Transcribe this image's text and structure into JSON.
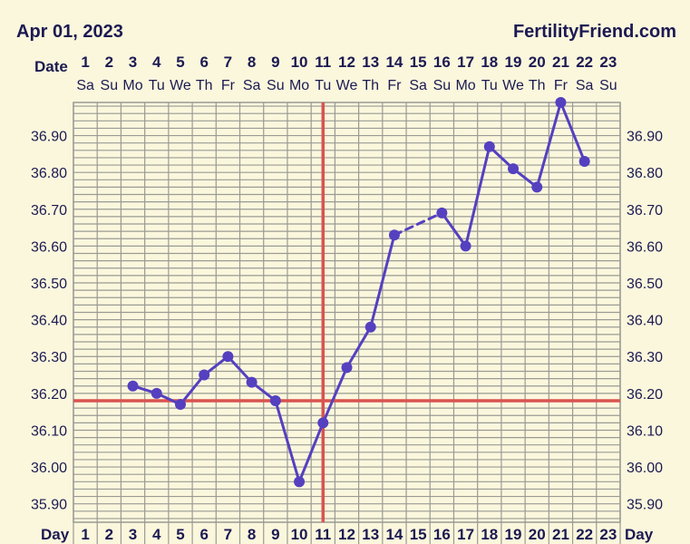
{
  "header": {
    "date": "Apr 01, 2023",
    "brand": "FertilityFriend.com"
  },
  "row_labels": {
    "date": "Date",
    "day": "Day"
  },
  "colors": {
    "background": "#fbf7dd",
    "grid": "#9a9a94",
    "text": "#1c1a52",
    "series": "#5540c0",
    "coverline": "#d9534f",
    "ovulation": "#d9534f"
  },
  "chart_data": {
    "type": "line",
    "dates": [
      "1",
      "2",
      "3",
      "4",
      "5",
      "6",
      "7",
      "8",
      "9",
      "10",
      "11",
      "12",
      "13",
      "14",
      "15",
      "16",
      "17",
      "18",
      "19",
      "20",
      "21",
      "22",
      "23"
    ],
    "weekdays": [
      "Sa",
      "Su",
      "Mo",
      "Tu",
      "We",
      "Th",
      "Fr",
      "Sa",
      "Su",
      "Mo",
      "Tu",
      "We",
      "Th",
      "Fr",
      "Sa",
      "Su",
      "Mo",
      "Tu",
      "We",
      "Th",
      "Fr",
      "Sa",
      "Su"
    ],
    "days": [
      "1",
      "2",
      "3",
      "4",
      "5",
      "6",
      "7",
      "8",
      "9",
      "10",
      "11",
      "12",
      "13",
      "14",
      "15",
      "16",
      "17",
      "18",
      "19",
      "20",
      "21",
      "22",
      "23"
    ],
    "y_ticks": [
      "35.90",
      "36.00",
      "36.10",
      "36.20",
      "36.30",
      "36.40",
      "36.50",
      "36.60",
      "36.70",
      "36.80",
      "36.90"
    ],
    "ylim": [
      35.85,
      36.99
    ],
    "series": [
      {
        "points": [
          {
            "day": 3,
            "temp": 36.22
          },
          {
            "day": 4,
            "temp": 36.2
          },
          {
            "day": 5,
            "temp": 36.17
          },
          {
            "day": 6,
            "temp": 36.25
          },
          {
            "day": 7,
            "temp": 36.3
          },
          {
            "day": 8,
            "temp": 36.23
          },
          {
            "day": 9,
            "temp": 36.18
          },
          {
            "day": 10,
            "temp": 35.96
          },
          {
            "day": 11,
            "temp": 36.12
          },
          {
            "day": 12,
            "temp": 36.27
          },
          {
            "day": 13,
            "temp": 36.38
          },
          {
            "day": 14,
            "temp": 36.63
          },
          {
            "day": 16,
            "temp": 36.69
          },
          {
            "day": 17,
            "temp": 36.6
          },
          {
            "day": 18,
            "temp": 36.87
          },
          {
            "day": 19,
            "temp": 36.81
          },
          {
            "day": 20,
            "temp": 36.76
          },
          {
            "day": 21,
            "temp": 36.99
          },
          {
            "day": 22,
            "temp": 36.83
          }
        ]
      }
    ],
    "coverline": 36.18,
    "ovulation_day": 11
  }
}
